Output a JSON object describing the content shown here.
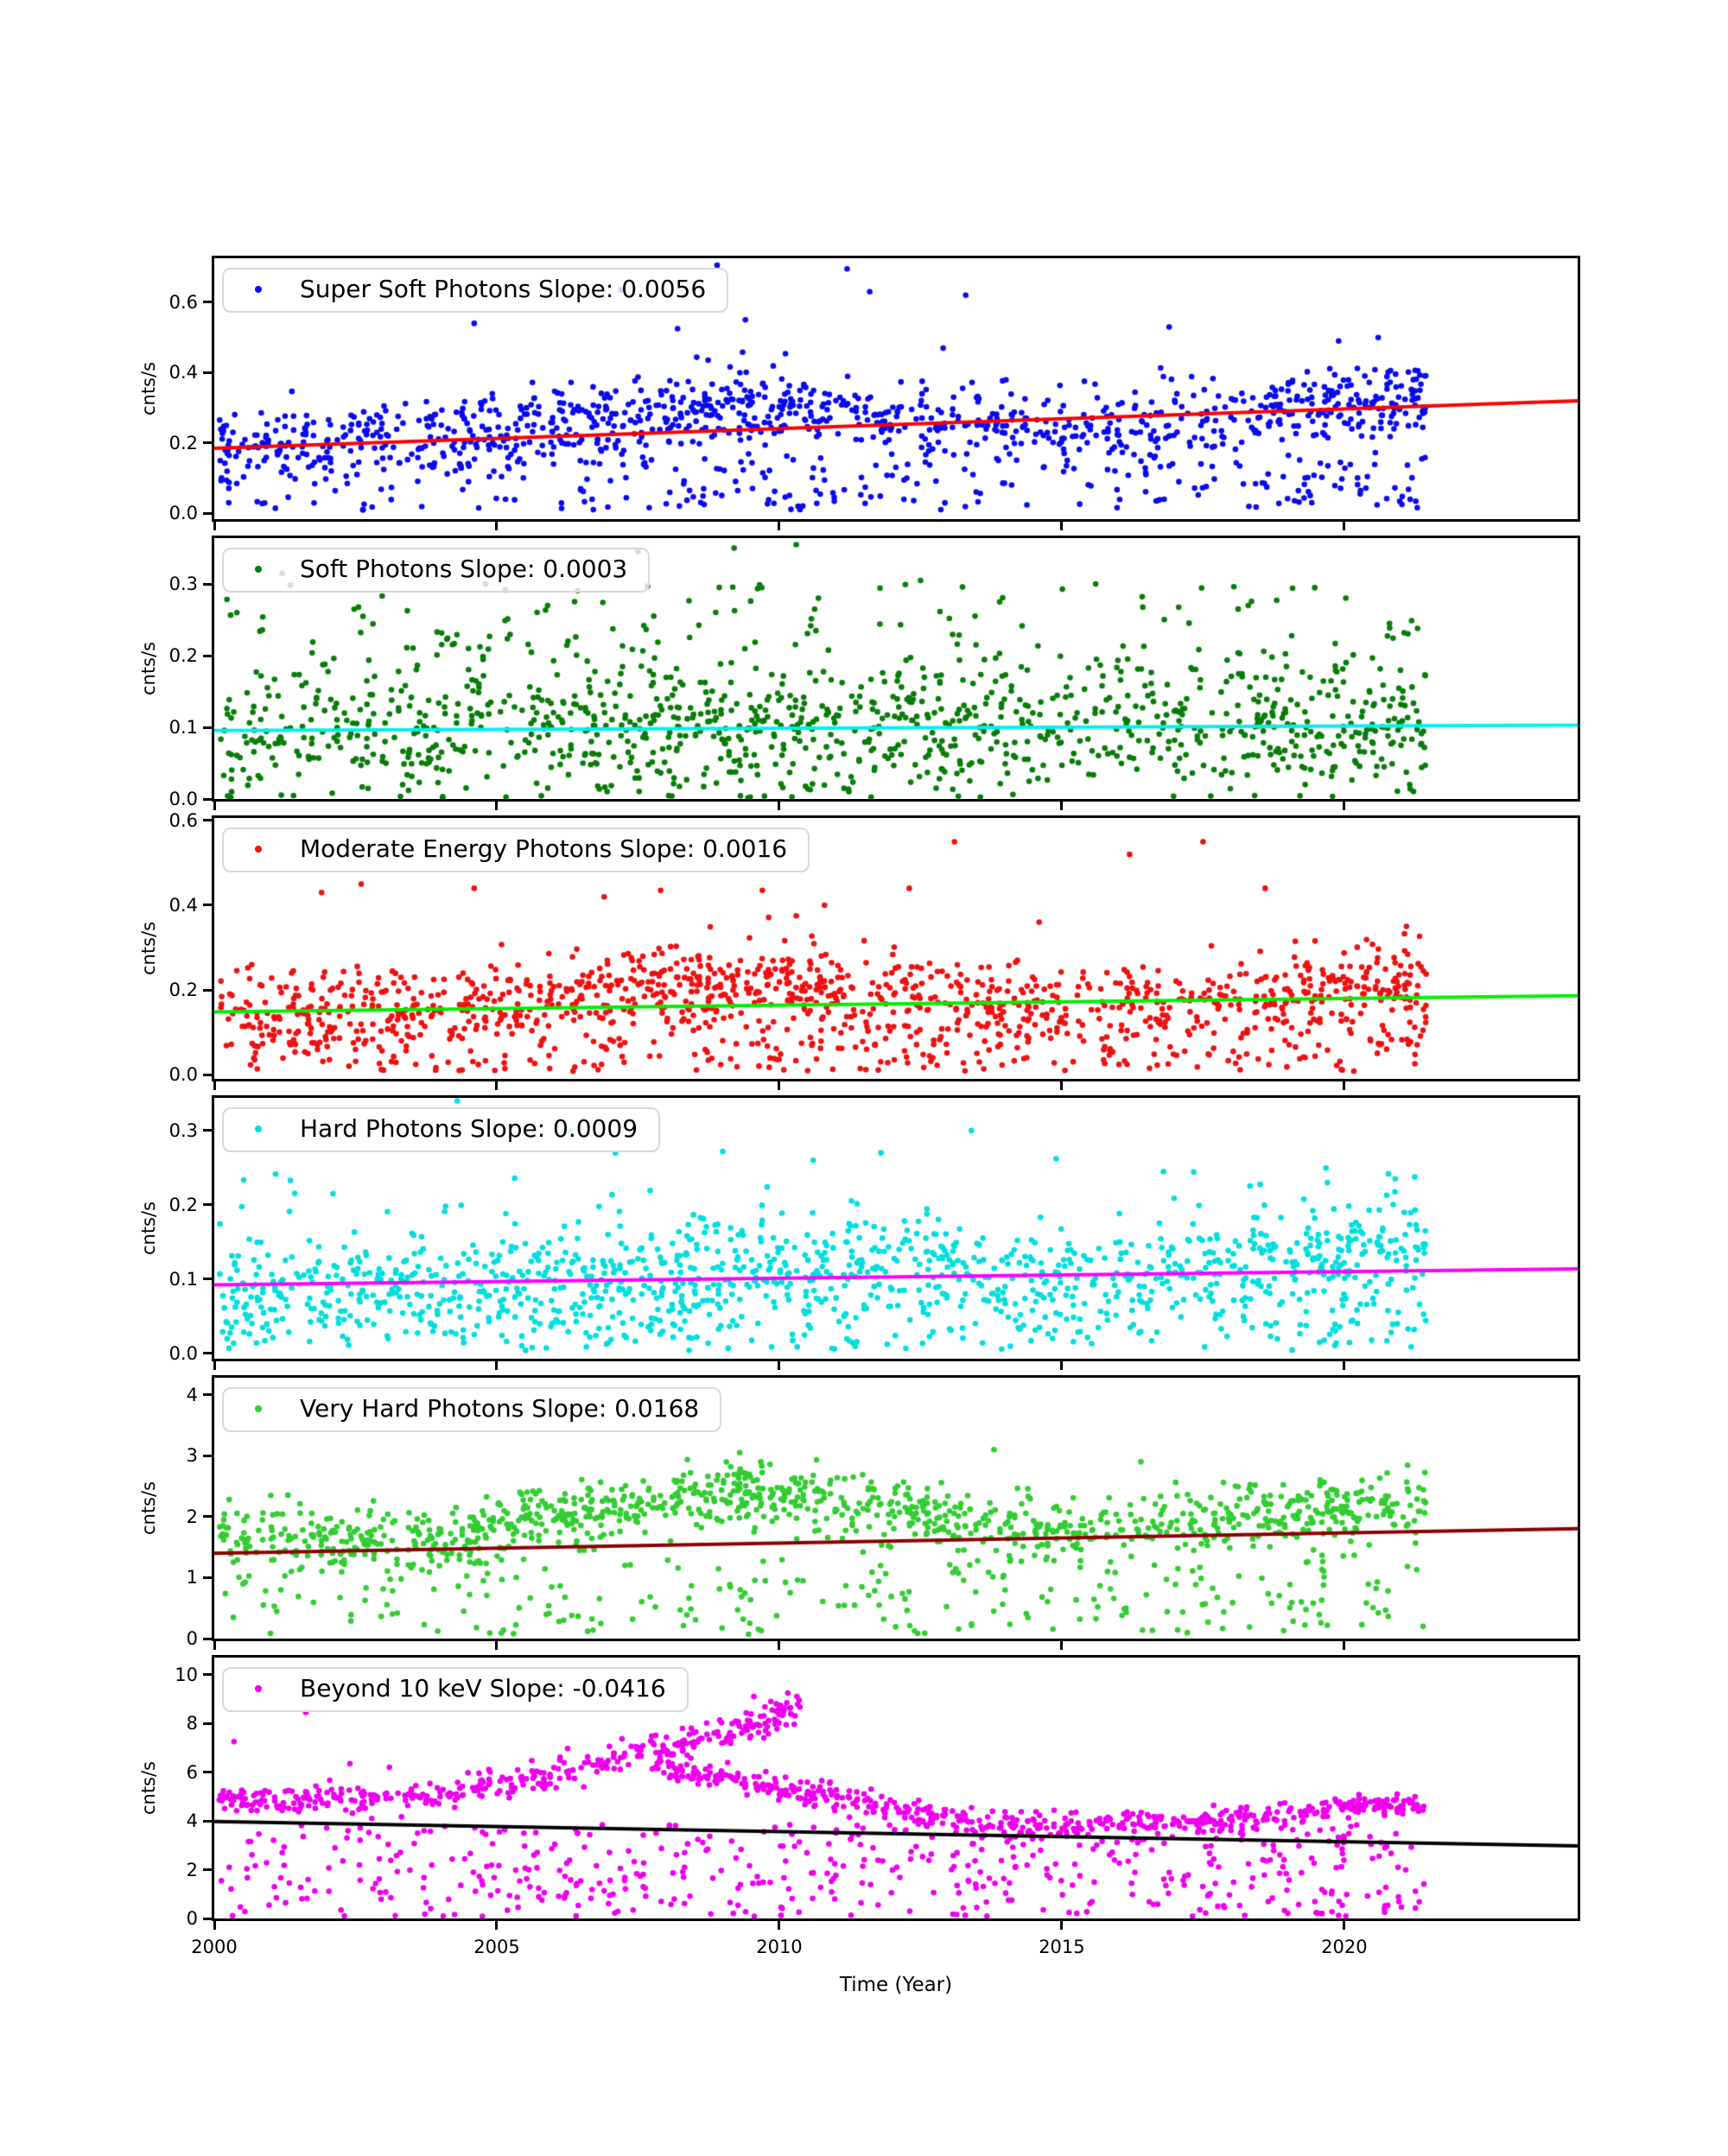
{
  "figure": {
    "xlabel": "Time (Year)",
    "ylabel": "cnts/s",
    "background_color": "#ffffff",
    "axis_color": "#000000"
  },
  "chart_data": {
    "type": "scatter",
    "title": "",
    "xlabel": "Time (Year)",
    "ylabel": "cnts/s",
    "xlim": [
      2000,
      2024.13
    ],
    "x_ticks": [
      "2000",
      "2005",
      "2010",
      "2015",
      "2020"
    ],
    "x_tick_values": [
      2000,
      2005,
      2010,
      2015,
      2020
    ],
    "data_x_range": [
      2000.08,
      2021.45
    ],
    "legend_position": "upper-left",
    "grid": false,
    "density_profile": [
      [
        2000,
        0.9
      ],
      [
        2004,
        0.95
      ],
      [
        2007,
        1.15
      ],
      [
        2010,
        1.2
      ],
      [
        2012,
        1.0
      ],
      [
        2014,
        1.0
      ],
      [
        2016,
        0.85
      ],
      [
        2018,
        0.95
      ],
      [
        2019.5,
        1.25
      ],
      [
        2021.45,
        1.3
      ]
    ],
    "panels": [
      {
        "name": "Super Soft Photons",
        "legend": "Super Soft Photons Slope: 0.0056",
        "slope": 0.0056,
        "dot_color": "#0a0af0",
        "trend_color": "#ff0000",
        "ylim": [
          -0.016,
          0.725
        ],
        "ytick_labels": [
          "0.0",
          "0.2",
          "0.4",
          "0.6"
        ],
        "ytick_values": [
          0,
          0.2,
          0.4,
          0.6
        ],
        "trend": {
          "x": [
            2000,
            2024.13
          ],
          "y": [
            0.185,
            0.32
          ]
        },
        "seed": 11,
        "components": [
          {
            "n": 1020,
            "x": [
              2000.08,
              2021.45
            ],
            "band": [
              [
                2000,
                0.205
              ],
              [
                2003,
                0.21
              ],
              [
                2005,
                0.225
              ],
              [
                2007,
                0.27
              ],
              [
                2009,
                0.295
              ],
              [
                2010.5,
                0.3
              ],
              [
                2012,
                0.26
              ],
              [
                2014,
                0.24
              ],
              [
                2016,
                0.24
              ],
              [
                2018,
                0.27
              ],
              [
                2019.5,
                0.3
              ],
              [
                2021.45,
                0.34
              ]
            ],
            "sd": 0.055
          },
          {
            "n": 240,
            "x": [
              2000.08,
              2021.45
            ],
            "uniform": [
              0.01,
              0.16
            ]
          }
        ],
        "outliers": [
          [
            2004.6,
            0.54
          ],
          [
            2007.2,
            0.635
          ],
          [
            2008.2,
            0.525
          ],
          [
            2008.9,
            0.705
          ],
          [
            2009.4,
            0.55
          ],
          [
            2011.2,
            0.695
          ],
          [
            2011.6,
            0.63
          ],
          [
            2012.9,
            0.47
          ],
          [
            2013.3,
            0.62
          ],
          [
            2016.9,
            0.53
          ],
          [
            2019.9,
            0.49
          ],
          [
            2020.6,
            0.5
          ]
        ]
      },
      {
        "name": "Soft Photons",
        "legend": "Soft Photons Slope: 0.0003",
        "slope": 0.0003,
        "dot_color": "#087d08",
        "trend_color": "#00f0f0",
        "ylim": [
          0,
          0.364
        ],
        "ytick_labels": [
          "0.0",
          "0.1",
          "0.2",
          "0.3"
        ],
        "ytick_values": [
          0,
          0.1,
          0.2,
          0.3
        ],
        "trend": {
          "x": [
            2000,
            2024.13
          ],
          "y": [
            0.0955,
            0.103
          ]
        },
        "seed": 22,
        "components": [
          {
            "n": 1060,
            "x": [
              2000.08,
              2021.45
            ],
            "band": [
              [
                2000,
                0.092
              ],
              [
                2010,
                0.096
              ],
              [
                2021.45,
                0.1
              ]
            ],
            "sd": 0.047
          },
          {
            "n": 150,
            "x": [
              2000.08,
              2021.45
            ],
            "uniform": [
              0.16,
              0.3
            ]
          }
        ],
        "outliers": [
          [
            2000.4,
            0.26
          ],
          [
            2001.2,
            0.315
          ],
          [
            2004.8,
            0.3
          ],
          [
            2005.9,
            0.27
          ],
          [
            2007.5,
            0.345
          ],
          [
            2009.2,
            0.35
          ],
          [
            2010.3,
            0.355
          ],
          [
            2012.5,
            0.305
          ],
          [
            2013.9,
            0.275
          ],
          [
            2015.6,
            0.3
          ],
          [
            2018.3,
            0.27
          ],
          [
            2020.8,
            0.245
          ]
        ]
      },
      {
        "name": "Moderate Energy Photons",
        "legend": "Moderate Energy Photons Slope: 0.0016",
        "slope": 0.0016,
        "dot_color": "#ee1111",
        "trend_color": "#00ee00",
        "ylim": [
          -0.01,
          0.606
        ],
        "ytick_labels": [
          "0.0",
          "0.2",
          "0.4",
          "0.6"
        ],
        "ytick_values": [
          0,
          0.2,
          0.4,
          0.6
        ],
        "trend": {
          "x": [
            2000,
            2024.13
          ],
          "y": [
            0.148,
            0.1865
          ]
        },
        "seed": 33,
        "components": [
          {
            "n": 1060,
            "x": [
              2000.08,
              2021.45
            ],
            "band": [
              [
                2000,
                0.148
              ],
              [
                2004,
                0.155
              ],
              [
                2006,
                0.17
              ],
              [
                2008,
                0.205
              ],
              [
                2010,
                0.21
              ],
              [
                2012,
                0.19
              ],
              [
                2014,
                0.168
              ],
              [
                2016,
                0.163
              ],
              [
                2018,
                0.175
              ],
              [
                2020,
                0.205
              ],
              [
                2021.45,
                0.215
              ]
            ],
            "sd": 0.05
          },
          {
            "n": 260,
            "x": [
              2000.08,
              2021.45
            ],
            "uniform": [
              0.008,
              0.115
            ]
          }
        ],
        "outliers": [
          [
            2001.9,
            0.43
          ],
          [
            2002.6,
            0.45
          ],
          [
            2004.6,
            0.44
          ],
          [
            2006.9,
            0.42
          ],
          [
            2007.9,
            0.435
          ],
          [
            2009.7,
            0.435
          ],
          [
            2010.3,
            0.375
          ],
          [
            2010.8,
            0.4
          ],
          [
            2012.3,
            0.44
          ],
          [
            2013.1,
            0.55
          ],
          [
            2014.6,
            0.36
          ],
          [
            2016.2,
            0.52
          ],
          [
            2017.5,
            0.55
          ],
          [
            2018.6,
            0.44
          ],
          [
            2021.1,
            0.35
          ]
        ]
      },
      {
        "name": "Hard Photons",
        "legend": "Hard Photons Slope: 0.0009",
        "slope": 0.0009,
        "dot_color": "#00dede",
        "trend_color": "#ff00ff",
        "ylim": [
          -0.007,
          0.344
        ],
        "ytick_labels": [
          "0.0",
          "0.1",
          "0.2",
          "0.3"
        ],
        "ytick_values": [
          0,
          0.1,
          0.2,
          0.3
        ],
        "trend": {
          "x": [
            2000,
            2024.13
          ],
          "y": [
            0.0925,
            0.114
          ]
        },
        "seed": 44,
        "components": [
          {
            "n": 1010,
            "x": [
              2000.08,
              2021.45
            ],
            "band": [
              [
                2000,
                0.095
              ],
              [
                2005,
                0.098
              ],
              [
                2008,
                0.108
              ],
              [
                2010,
                0.118
              ],
              [
                2012,
                0.118
              ],
              [
                2014,
                0.112
              ],
              [
                2016,
                0.112
              ],
              [
                2018,
                0.12
              ],
              [
                2020,
                0.133
              ],
              [
                2021.45,
                0.14
              ]
            ],
            "sd": 0.034
          },
          {
            "n": 260,
            "x": [
              2000.08,
              2021.45
            ],
            "uniform": [
              0.004,
              0.075
            ]
          },
          {
            "n": 26,
            "x": [
              2000.08,
              2021.45
            ],
            "uniform": [
              0.18,
              0.26
            ]
          }
        ],
        "outliers": [
          [
            2002.1,
            0.215
          ],
          [
            2004.3,
            0.34
          ],
          [
            2006.3,
            0.3
          ],
          [
            2007.1,
            0.27
          ],
          [
            2009.0,
            0.272
          ],
          [
            2010.6,
            0.26
          ],
          [
            2011.8,
            0.27
          ],
          [
            2013.4,
            0.3
          ],
          [
            2014.9,
            0.262
          ],
          [
            2016.8,
            0.245
          ],
          [
            2019.7,
            0.23
          ],
          [
            2020.9,
            0.235
          ]
        ]
      },
      {
        "name": "Very Hard Photons",
        "legend": "Very Hard Photons Slope: 0.0168",
        "slope": 0.0168,
        "dot_color": "#32cd32",
        "trend_color": "#8b0000",
        "ylim": [
          0,
          4.28
        ],
        "ytick_labels": [
          "0",
          "1",
          "2",
          "3",
          "4"
        ],
        "ytick_values": [
          0,
          1,
          2,
          3,
          4
        ],
        "trend": {
          "x": [
            2000,
            2024.13
          ],
          "y": [
            1.4,
            1.805
          ]
        },
        "seed": 55,
        "components": [
          {
            "n": 1080,
            "x": [
              2000.08,
              2021.45
            ],
            "band": [
              [
                2000,
                1.62
              ],
              [
                2002,
                1.58
              ],
              [
                2004,
                1.65
              ],
              [
                2006,
                1.95
              ],
              [
                2008,
                2.25
              ],
              [
                2009.5,
                2.4
              ],
              [
                2011,
                2.15
              ],
              [
                2012.5,
                1.95
              ],
              [
                2014,
                1.82
              ],
              [
                2016,
                1.85
              ],
              [
                2018,
                1.95
              ],
              [
                2019.5,
                2.1
              ],
              [
                2021.45,
                2.25
              ]
            ],
            "sd": 0.27
          },
          {
            "n": 240,
            "x": [
              2000.08,
              2021.45
            ],
            "uniform": [
              0.06,
              1.3
            ]
          }
        ],
        "outliers": [
          [
            2001.0,
            2.35
          ],
          [
            2009.3,
            3.05
          ],
          [
            2013.8,
            3.1
          ],
          [
            2016.4,
            2.9
          ]
        ]
      },
      {
        "name": "Beyond 10 keV",
        "legend": "Beyond 10 keV Slope: -0.0416",
        "slope": -0.0416,
        "dot_color": "#ee00ee",
        "trend_color": "#000000",
        "ylim": [
          0,
          10.7
        ],
        "ytick_labels": [
          "0",
          "2",
          "4",
          "6",
          "8",
          "10"
        ],
        "ytick_values": [
          0,
          2,
          4,
          6,
          8,
          10
        ],
        "trend": {
          "x": [
            2000,
            2024.13
          ],
          "y": [
            3.98,
            2.98
          ]
        },
        "seed": 66,
        "components": [
          {
            "n": 400,
            "x": [
              2000.08,
              2010.45
            ],
            "band": [
              [
                2000,
                4.85
              ],
              [
                2002.5,
                4.9
              ],
              [
                2004,
                5.1
              ],
              [
                2005,
                5.45
              ],
              [
                2006,
                5.9
              ],
              [
                2007,
                6.5
              ],
              [
                2008,
                7.0
              ],
              [
                2009,
                7.5
              ],
              [
                2010.45,
                8.85
              ]
            ],
            "sd": 0.3
          },
          {
            "n": 540,
            "x": [
              2007.8,
              2021.45
            ],
            "band": [
              [
                2007.8,
                6.1
              ],
              [
                2009,
                5.8
              ],
              [
                2010,
                5.35
              ],
              [
                2011,
                5.0
              ],
              [
                2012,
                4.5
              ],
              [
                2013,
                4.15
              ],
              [
                2014,
                3.95
              ],
              [
                2015,
                3.85
              ],
              [
                2016,
                3.9
              ],
              [
                2017,
                3.95
              ],
              [
                2018,
                4.1
              ],
              [
                2019,
                4.3
              ],
              [
                2020,
                4.55
              ],
              [
                2020.8,
                4.7
              ],
              [
                2021.45,
                4.55
              ]
            ],
            "sd": 0.25
          },
          {
            "n": 500,
            "x": [
              2000.08,
              2021.45
            ],
            "uniform": [
              0.08,
              3.85
            ]
          }
        ],
        "outliers": [
          [
            2000.35,
            7.25
          ],
          [
            2001.62,
            8.45
          ],
          [
            2002.4,
            6.35
          ],
          [
            2003.1,
            6.2
          ],
          [
            2009.55,
            9.1
          ],
          [
            2009.85,
            8.9
          ],
          [
            2010.15,
            9.25
          ]
        ]
      }
    ]
  }
}
